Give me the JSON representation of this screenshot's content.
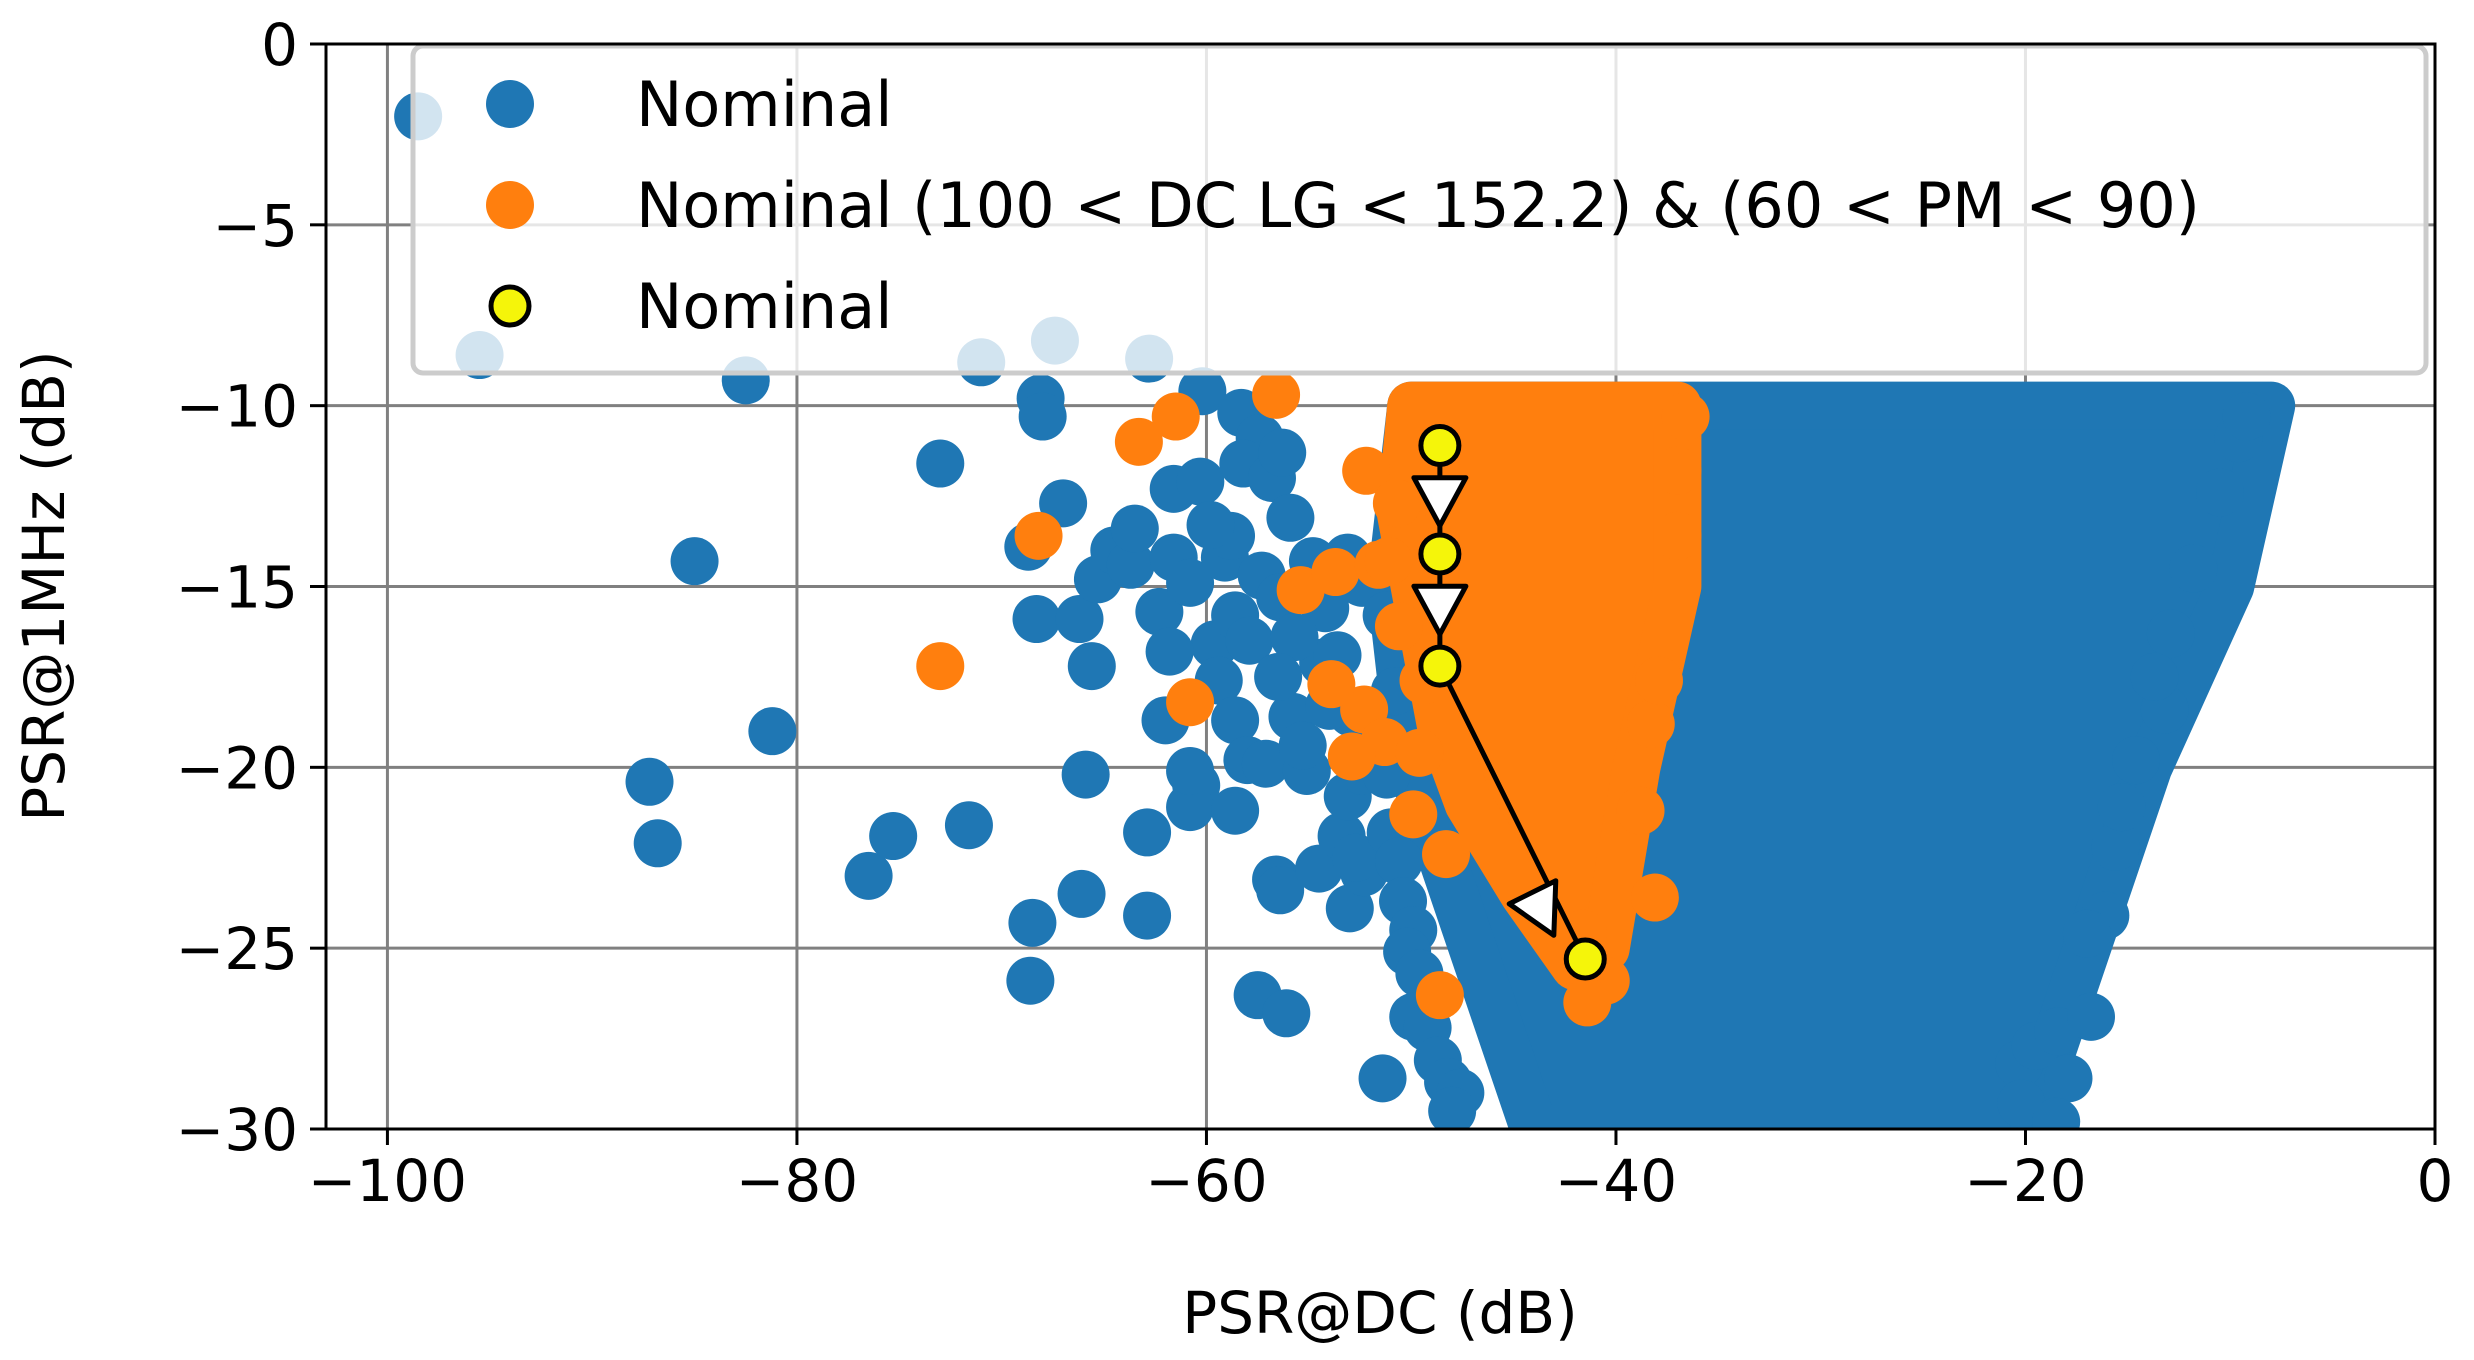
{
  "chart_data": {
    "type": "scatter",
    "xlabel": "PSR@DC (dB)",
    "ylabel": "PSR@1MHz (dB)",
    "xlim": [
      -103,
      0
    ],
    "ylim": [
      -30,
      0
    ],
    "xticks": [
      -100,
      -80,
      -60,
      -40,
      -20,
      0
    ],
    "yticks": [
      0,
      -5,
      -10,
      -15,
      -20,
      -25,
      -30
    ],
    "xtick_labels": [
      "−100",
      "−80",
      "−60",
      "−40",
      "−20",
      "0"
    ],
    "ytick_labels": [
      "0",
      "−5",
      "−10",
      "−15",
      "−20",
      "−25",
      "−30"
    ],
    "grid": true,
    "legend_position": "top-right",
    "colors": {
      "nominal": "#1f77b4",
      "filtered": "#ff7f0e",
      "path": "#f5f50a",
      "grid": "#808080"
    },
    "legend": [
      "Nominal",
      "Nominal (100 < DC LG < 152.2) & (60 < PM < 90)",
      "Nominal"
    ],
    "series": [
      {
        "name": "Nominal",
        "region": {
          "top_edge": [
            [
              -37,
              -10
            ],
            [
              -8,
              -10
            ]
          ],
          "right_edge": [
            [
              -8,
              -10
            ],
            [
              -10,
              -15
            ],
            [
              -14,
              -20
            ],
            [
              -17,
              -25
            ],
            [
              -20,
              -30
            ]
          ],
          "left_edge": [
            [
              -50,
              -10
            ],
            [
              -51,
              -15
            ],
            [
              -50,
              -20
            ],
            [
              -47,
              -25
            ],
            [
              -44,
              -30
            ]
          ]
        },
        "points": [
          [
            -98.5,
            -2
          ],
          [
            -95.5,
            -8.6
          ],
          [
            -82.5,
            -9.3
          ],
          [
            -85,
            -14.3
          ],
          [
            -81.2,
            -19
          ],
          [
            -87.2,
            -20.4
          ],
          [
            -86.8,
            -22.1
          ],
          [
            -76.5,
            -23
          ],
          [
            -75.3,
            -21.9
          ],
          [
            -71.6,
            -21.6
          ],
          [
            -73,
            -11.6
          ],
          [
            -68.7,
            -13.9
          ],
          [
            -68.3,
            -15.9
          ],
          [
            -66.2,
            -15.9
          ],
          [
            -65.3,
            -14.8
          ],
          [
            -65.6,
            -17.2
          ],
          [
            -67,
            -12.7
          ],
          [
            -64.5,
            -14
          ],
          [
            -63.7,
            -14.4
          ],
          [
            -63.5,
            -13.4
          ],
          [
            -62.3,
            -15.7
          ],
          [
            -61.6,
            -14.2
          ],
          [
            -62,
            -18.7
          ],
          [
            -60.5,
            -20.5
          ],
          [
            -60.8,
            -21.1
          ],
          [
            -59.6,
            -16.6
          ],
          [
            -59.4,
            -17.6
          ],
          [
            -58.6,
            -18.7
          ],
          [
            -58,
            -19.8
          ],
          [
            -58.6,
            -21.2
          ],
          [
            -57.1,
            -19.9
          ],
          [
            -56.6,
            -23.1
          ],
          [
            -56.4,
            -23.4
          ],
          [
            -54.5,
            -22.8
          ],
          [
            -55.1,
            -20.1
          ],
          [
            -53.4,
            -21.9
          ],
          [
            -53,
            -23.9
          ],
          [
            -53.1,
            -20.8
          ],
          [
            -52.3,
            -22.9
          ],
          [
            -52.7,
            -22.5
          ],
          [
            -61.6,
            -12.3
          ],
          [
            -60.3,
            -12.1
          ],
          [
            -60.8,
            -14.9
          ],
          [
            -59.1,
            -14.2
          ],
          [
            -58.6,
            -15.8
          ],
          [
            -57.9,
            -16.5
          ],
          [
            -57.3,
            -14.7
          ],
          [
            -56.4,
            -15.3
          ],
          [
            -55.8,
            -18.6
          ],
          [
            -55.3,
            -19.4
          ],
          [
            -54.3,
            -17.1
          ],
          [
            -53.6,
            -16.9
          ],
          [
            -52.9,
            -18.5
          ],
          [
            -52.4,
            -20.1
          ],
          [
            -51.8,
            -19.5
          ],
          [
            -51.2,
            -20.2
          ],
          [
            -51,
            -21.8
          ],
          [
            -50.6,
            -22.6
          ],
          [
            -50.4,
            -23.7
          ],
          [
            -49.9,
            -24.5
          ],
          [
            -50.2,
            -25.1
          ],
          [
            -49.6,
            -25.7
          ],
          [
            -49.9,
            -26.9
          ],
          [
            -49.2,
            -27.2
          ],
          [
            -48.7,
            -28.1
          ],
          [
            -48.2,
            -28.7
          ],
          [
            -47.6,
            -29
          ],
          [
            -48,
            -29.5
          ],
          [
            -51.4,
            -28.6
          ],
          [
            -65.9,
            -20.2
          ],
          [
            -62.9,
            -21.8
          ],
          [
            -62.9,
            -24.1
          ],
          [
            -66.1,
            -23.5
          ],
          [
            -68.5,
            -24.3
          ],
          [
            -68.6,
            -25.9
          ],
          [
            -57.5,
            -26.3
          ],
          [
            -56.1,
            -26.8
          ],
          [
            -60.8,
            -20.1
          ],
          [
            -61.8,
            -16.8
          ],
          [
            -71,
            -8.8
          ],
          [
            -67.4,
            -8.2
          ],
          [
            -68.1,
            -9.8
          ],
          [
            -68,
            -10.3
          ],
          [
            -62.8,
            -8.7
          ],
          [
            -60.2,
            -9.6
          ],
          [
            -58.3,
            -10.2
          ],
          [
            -57.4,
            -10.9
          ],
          [
            -58.2,
            -11.6
          ],
          [
            -56.8,
            -12
          ],
          [
            -56.3,
            -11.3
          ],
          [
            -58.8,
            -13.6
          ],
          [
            -59.8,
            -13.3
          ],
          [
            -55.9,
            -13.1
          ],
          [
            -54.8,
            -14.3
          ],
          [
            -54.2,
            -15.6
          ],
          [
            -53.1,
            -14.2
          ],
          [
            -52.4,
            -14.9
          ],
          [
            -51.2,
            -15.8
          ],
          [
            -55.7,
            -16.4
          ],
          [
            -54,
            -18.3
          ],
          [
            -56.5,
            -17.5
          ],
          [
            -50.8,
            -17.9
          ],
          [
            -20.3,
            -28.2
          ],
          [
            -19.5,
            -27.7
          ],
          [
            -18.4,
            -27.3
          ],
          [
            -16.8,
            -26.9
          ],
          [
            -17.9,
            -28.6
          ],
          [
            -19.6,
            -29.8
          ],
          [
            -20.2,
            -29.3
          ],
          [
            -18.5,
            -29.8
          ],
          [
            -16.1,
            -24.1
          ],
          [
            -15.6,
            -22.2
          ],
          [
            -14.6,
            -19.8
          ],
          [
            -13.2,
            -18.4
          ],
          [
            -12.9,
            -16.3
          ],
          [
            -11.8,
            -14.5
          ],
          [
            -10.5,
            -12.4
          ],
          [
            -9.6,
            -10.9
          ],
          [
            -9.2,
            -10.3
          ],
          [
            -17,
            -24.6
          ],
          [
            -15.3,
            -21.1
          ],
          [
            -13.7,
            -17.5
          ]
        ]
      },
      {
        "name": "Nominal (100 < DC LG < 152.2) & (60 < PM < 90)",
        "region": {
          "top_edge": [
            [
              -50,
              -10
            ],
            [
              -37,
              -10
            ]
          ],
          "right_edge": [
            [
              -37,
              -10
            ],
            [
              -37,
              -15
            ],
            [
              -39,
              -20
            ],
            [
              -40.5,
              -25
            ]
          ],
          "left_edge": [
            [
              -50,
              -10
            ],
            [
              -50.5,
              -13
            ],
            [
              -49.5,
              -16
            ],
            [
              -48.5,
              -19
            ],
            [
              -47.2,
              -21
            ],
            [
              -44.5,
              -23.5
            ],
            [
              -42,
              -25.5
            ]
          ]
        },
        "points": [
          [
            -63.3,
            -11
          ],
          [
            -68.2,
            -13.6
          ],
          [
            -73,
            -17.2
          ],
          [
            -60.8,
            -18.2
          ],
          [
            -61.5,
            -10.3
          ],
          [
            -56.6,
            -9.7
          ],
          [
            -55.4,
            -15.1
          ],
          [
            -52.2,
            -11.8
          ],
          [
            -50.6,
            -16.1
          ],
          [
            -53.7,
            -14.6
          ],
          [
            -51.6,
            -14.4
          ],
          [
            -52.3,
            -18.4
          ],
          [
            -51.3,
            -19.3
          ],
          [
            -49.9,
            -21.3
          ],
          [
            -48.3,
            -22.4
          ],
          [
            -48.6,
            -26.3
          ],
          [
            -52.9,
            -19.7
          ],
          [
            -53.9,
            -17.7
          ],
          [
            -49.4,
            -17.6
          ],
          [
            -50.7,
            -12.7
          ],
          [
            -51.1,
            -14.3
          ],
          [
            -49.6,
            -19.6
          ],
          [
            -40.5,
            -25.9
          ],
          [
            -41.6,
            -24.6
          ],
          [
            -38.1,
            -23.6
          ],
          [
            -41.4,
            -26.5
          ],
          [
            -38.8,
            -21.2
          ],
          [
            -38.3,
            -18.8
          ],
          [
            -37.9,
            -17.6
          ],
          [
            -37,
            -13.6
          ],
          [
            -37,
            -11.8
          ],
          [
            -36.6,
            -10.3
          ]
        ]
      },
      {
        "name": "Nominal",
        "points": [
          [
            -48.6,
            -11.1
          ],
          [
            -48.6,
            -14.1
          ],
          [
            -48.6,
            -17.2
          ],
          [
            -41.5,
            -25.3
          ]
        ],
        "arrows": [
          [
            -48.6,
            -12.6
          ],
          [
            -48.6,
            -15.6
          ],
          [
            -43.6,
            -24
          ]
        ]
      }
    ]
  }
}
